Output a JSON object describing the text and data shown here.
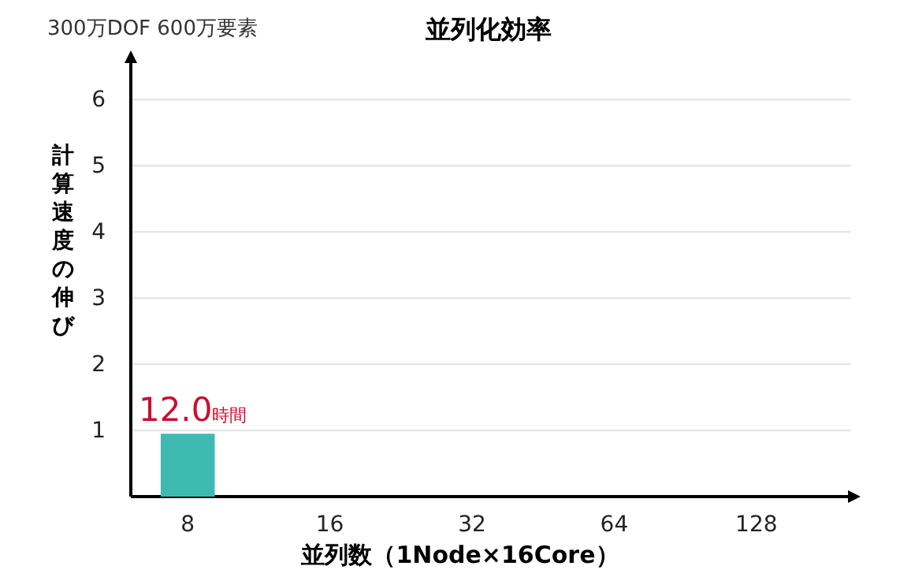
{
  "chart_data": {
    "type": "bar",
    "title": "並列化効率",
    "subtitle": "300万DOF 600万要素",
    "xlabel": "並列数（1Node×16Core）",
    "ylabel": "計算速度の伸び",
    "categories": [
      "8",
      "16",
      "32",
      "64",
      "128"
    ],
    "values": [
      0.95,
      null,
      null,
      null,
      null
    ],
    "color": "#3fbab3",
    "ylim": [
      0,
      6.6
    ],
    "yticks": [
      1,
      2,
      3,
      4,
      5,
      6
    ],
    "grid": "y",
    "annotations": [
      {
        "text": "12.0時間",
        "x": "8",
        "y": 0.95
      }
    ]
  }
}
